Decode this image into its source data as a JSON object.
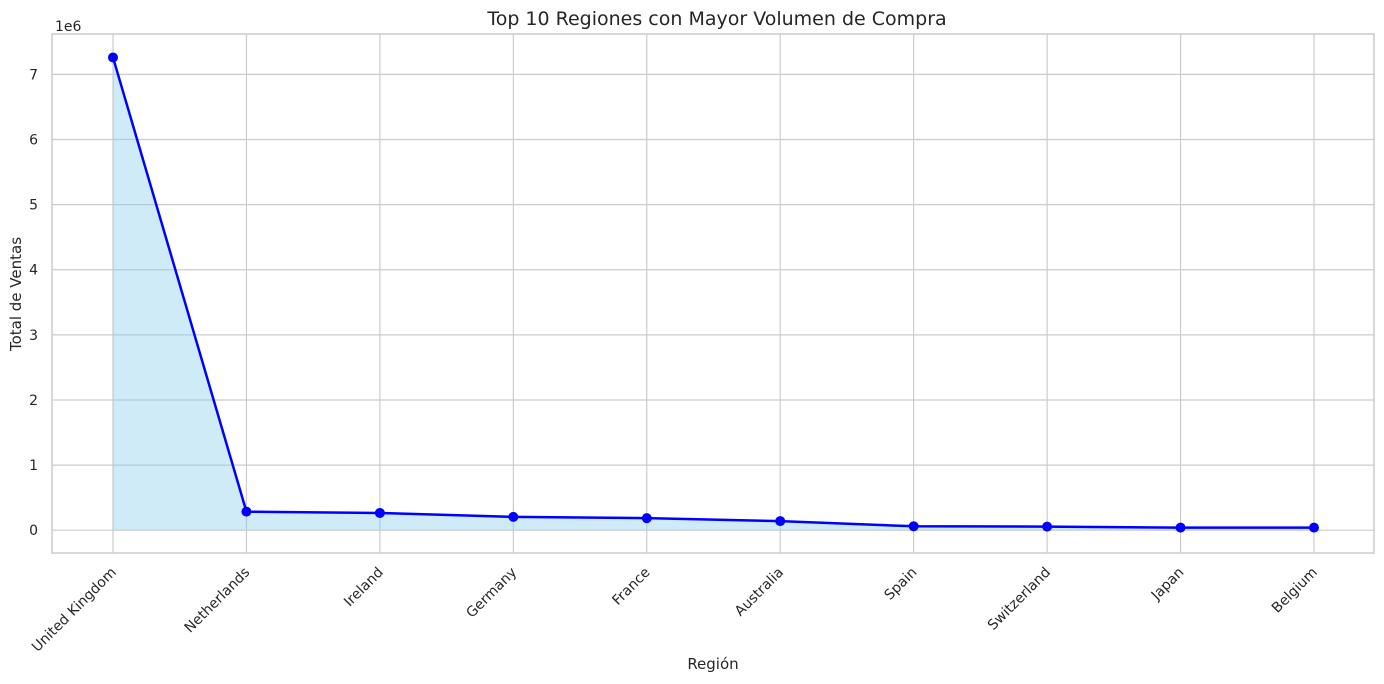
{
  "chart_data": {
    "type": "line",
    "title": "Top 10 Regiones con Mayor Volumen de Compra",
    "xlabel": "Región",
    "ylabel": "Total de Ventas",
    "y_offset_label": "1e6",
    "categories": [
      "United Kingdom",
      "Netherlands",
      "Ireland",
      "Germany",
      "France",
      "Australia",
      "Spain",
      "Switzerland",
      "Japan",
      "Belgium"
    ],
    "values": [
      7260000,
      285000,
      265000,
      205000,
      185000,
      140000,
      60000,
      55000,
      40000,
      40000
    ],
    "y_ticks": [
      0,
      1000000,
      2000000,
      3000000,
      4000000,
      5000000,
      6000000,
      7000000
    ],
    "y_tick_labels": [
      "0",
      "1",
      "2",
      "3",
      "4",
      "5",
      "6",
      "7"
    ],
    "ylim": [
      -350000,
      7620000
    ],
    "grid": true,
    "line_color": "#0000ff",
    "fill_color": "#87ceeb",
    "fill_alpha": 0.4,
    "marker": "circle"
  }
}
